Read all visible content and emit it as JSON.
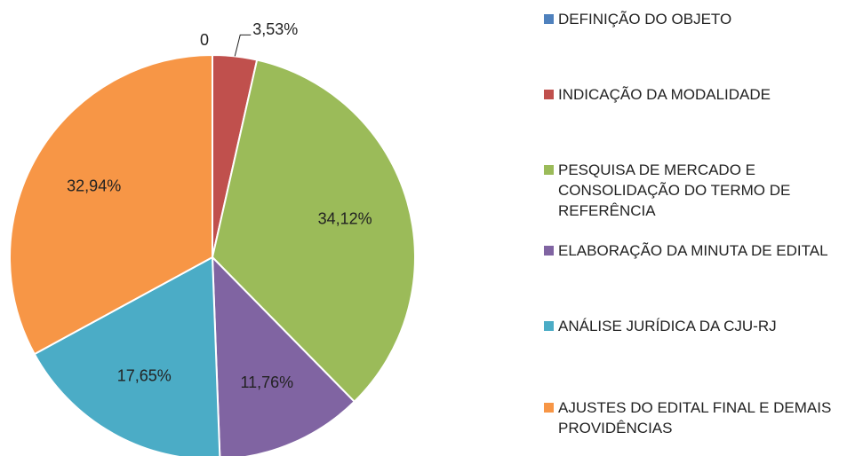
{
  "chart_data": {
    "type": "pie",
    "categories": [
      "DEFINIÇÃO DO OBJETO",
      "INDICAÇÃO DA MODALIDADE",
      "PESQUISA DE MERCADO E CONSOLIDAÇÃO DO TERMO DE REFERÊNCIA",
      "ELABORAÇÃO DA MINUTA DE EDITAL",
      "ANÁLISE JURÍDICA DA CJU-RJ",
      "AJUSTES DO EDITAL FINAL E DEMAIS PROVIDÊNCIAS"
    ],
    "values": [
      0,
      3.53,
      34.12,
      11.76,
      17.65,
      32.94
    ],
    "value_labels": [
      "0",
      "3,53%",
      "34,12%",
      "11,76%",
      "17,65%",
      "32,94%"
    ],
    "colors": [
      "#4f81bd",
      "#c0504d",
      "#9bbb59",
      "#8064a2",
      "#4bacc6",
      "#f79646"
    ],
    "legend": "right"
  }
}
